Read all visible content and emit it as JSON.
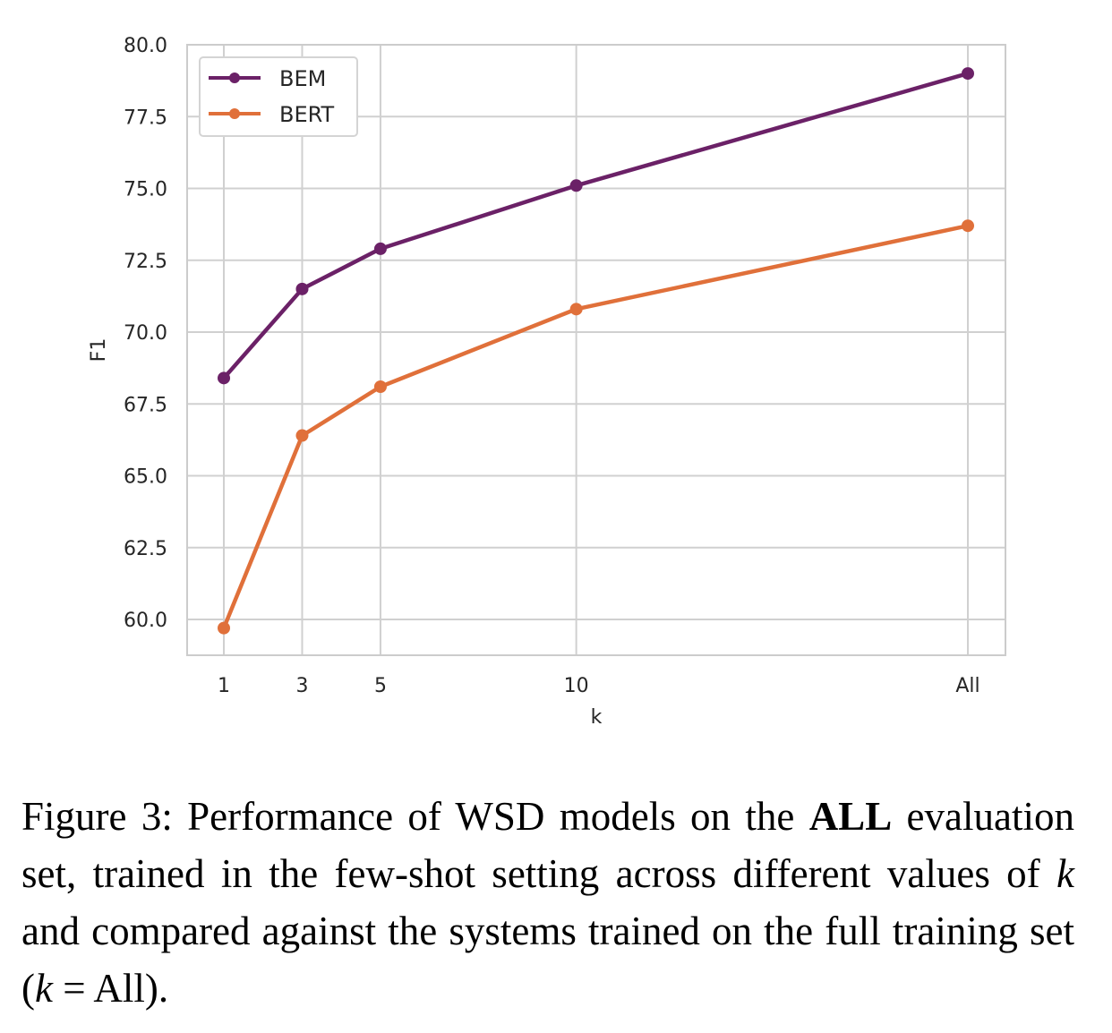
{
  "chart_data": {
    "type": "line",
    "title": "",
    "xlabel": "k",
    "ylabel": "F1",
    "categories": [
      "1",
      "3",
      "5",
      "10",
      "All"
    ],
    "x_positions": [
      1,
      3,
      5,
      10,
      20
    ],
    "xlim": [
      0,
      21
    ],
    "ylim": [
      58.8,
      80.0
    ],
    "yticks": [
      "60.0",
      "62.5",
      "65.0",
      "67.5",
      "70.0",
      "72.5",
      "75.0",
      "77.5",
      "80.0"
    ],
    "grid": true,
    "legend_position": "top-left",
    "series": [
      {
        "name": "BEM",
        "color": "#6b2167",
        "values": [
          68.4,
          71.5,
          72.9,
          75.1,
          79.0
        ]
      },
      {
        "name": "BERT",
        "color": "#e0703a",
        "values": [
          59.7,
          66.4,
          68.1,
          70.8,
          73.7
        ]
      }
    ]
  },
  "caption": {
    "lead": "Figure 3:  Performance of WSD models on the ",
    "bold": "ALL",
    "mid1": " evaluation set, trained in the few-shot setting across different values of ",
    "k1": "k",
    "mid2": " and compared against the systems trained on the full training set (",
    "k2": "k",
    "tail": " = All)."
  }
}
